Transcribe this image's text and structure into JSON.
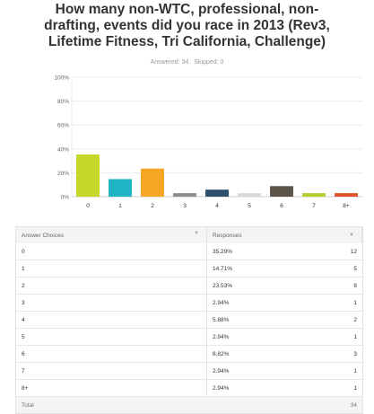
{
  "question": {
    "title_lines": [
      "How many non-WTC, professional, non-",
      "drafting, events did you race in 2013 (Rev3,",
      "Lifetime Fitness, Tri California, Challenge)"
    ],
    "answered": "Answered: 34",
    "skipped": "Skipped: 0"
  },
  "chart_data": {
    "type": "bar",
    "categories": [
      "0",
      "1",
      "2",
      "3",
      "4",
      "5",
      "6",
      "7",
      "8+"
    ],
    "values": [
      35.29,
      14.71,
      23.53,
      2.94,
      5.88,
      2.94,
      8.82,
      2.94,
      2.94
    ],
    "colors": [
      "#c6d62b",
      "#1fb3c4",
      "#f5a623",
      "#8c8c8c",
      "#2d4f6b",
      "#d9d9d9",
      "#5b5448",
      "#b9cc2e",
      "#e0522a"
    ],
    "ylim": [
      0,
      100
    ],
    "yticks": [
      "0%",
      "20%",
      "40%",
      "60%",
      "80%",
      "100%"
    ],
    "ytick_values": [
      0,
      20,
      40,
      60,
      80,
      100
    ],
    "grid": true
  },
  "table": {
    "headers": [
      "Answer Choices",
      "Responses"
    ],
    "sort_icon": "chevron-down-icon",
    "rows": [
      {
        "choice": "0",
        "percent": "35.29%",
        "count": "12"
      },
      {
        "choice": "1",
        "percent": "14.71%",
        "count": "5"
      },
      {
        "choice": "2",
        "percent": "23.53%",
        "count": "8"
      },
      {
        "choice": "3",
        "percent": "2.94%",
        "count": "1"
      },
      {
        "choice": "4",
        "percent": "5.88%",
        "count": "2"
      },
      {
        "choice": "5",
        "percent": "2.94%",
        "count": "1"
      },
      {
        "choice": "6",
        "percent": "8.82%",
        "count": "3"
      },
      {
        "choice": "7",
        "percent": "2.94%",
        "count": "1"
      },
      {
        "choice": "8+",
        "percent": "2.94%",
        "count": "1"
      }
    ],
    "total_label": "Total",
    "total_count": "34"
  }
}
